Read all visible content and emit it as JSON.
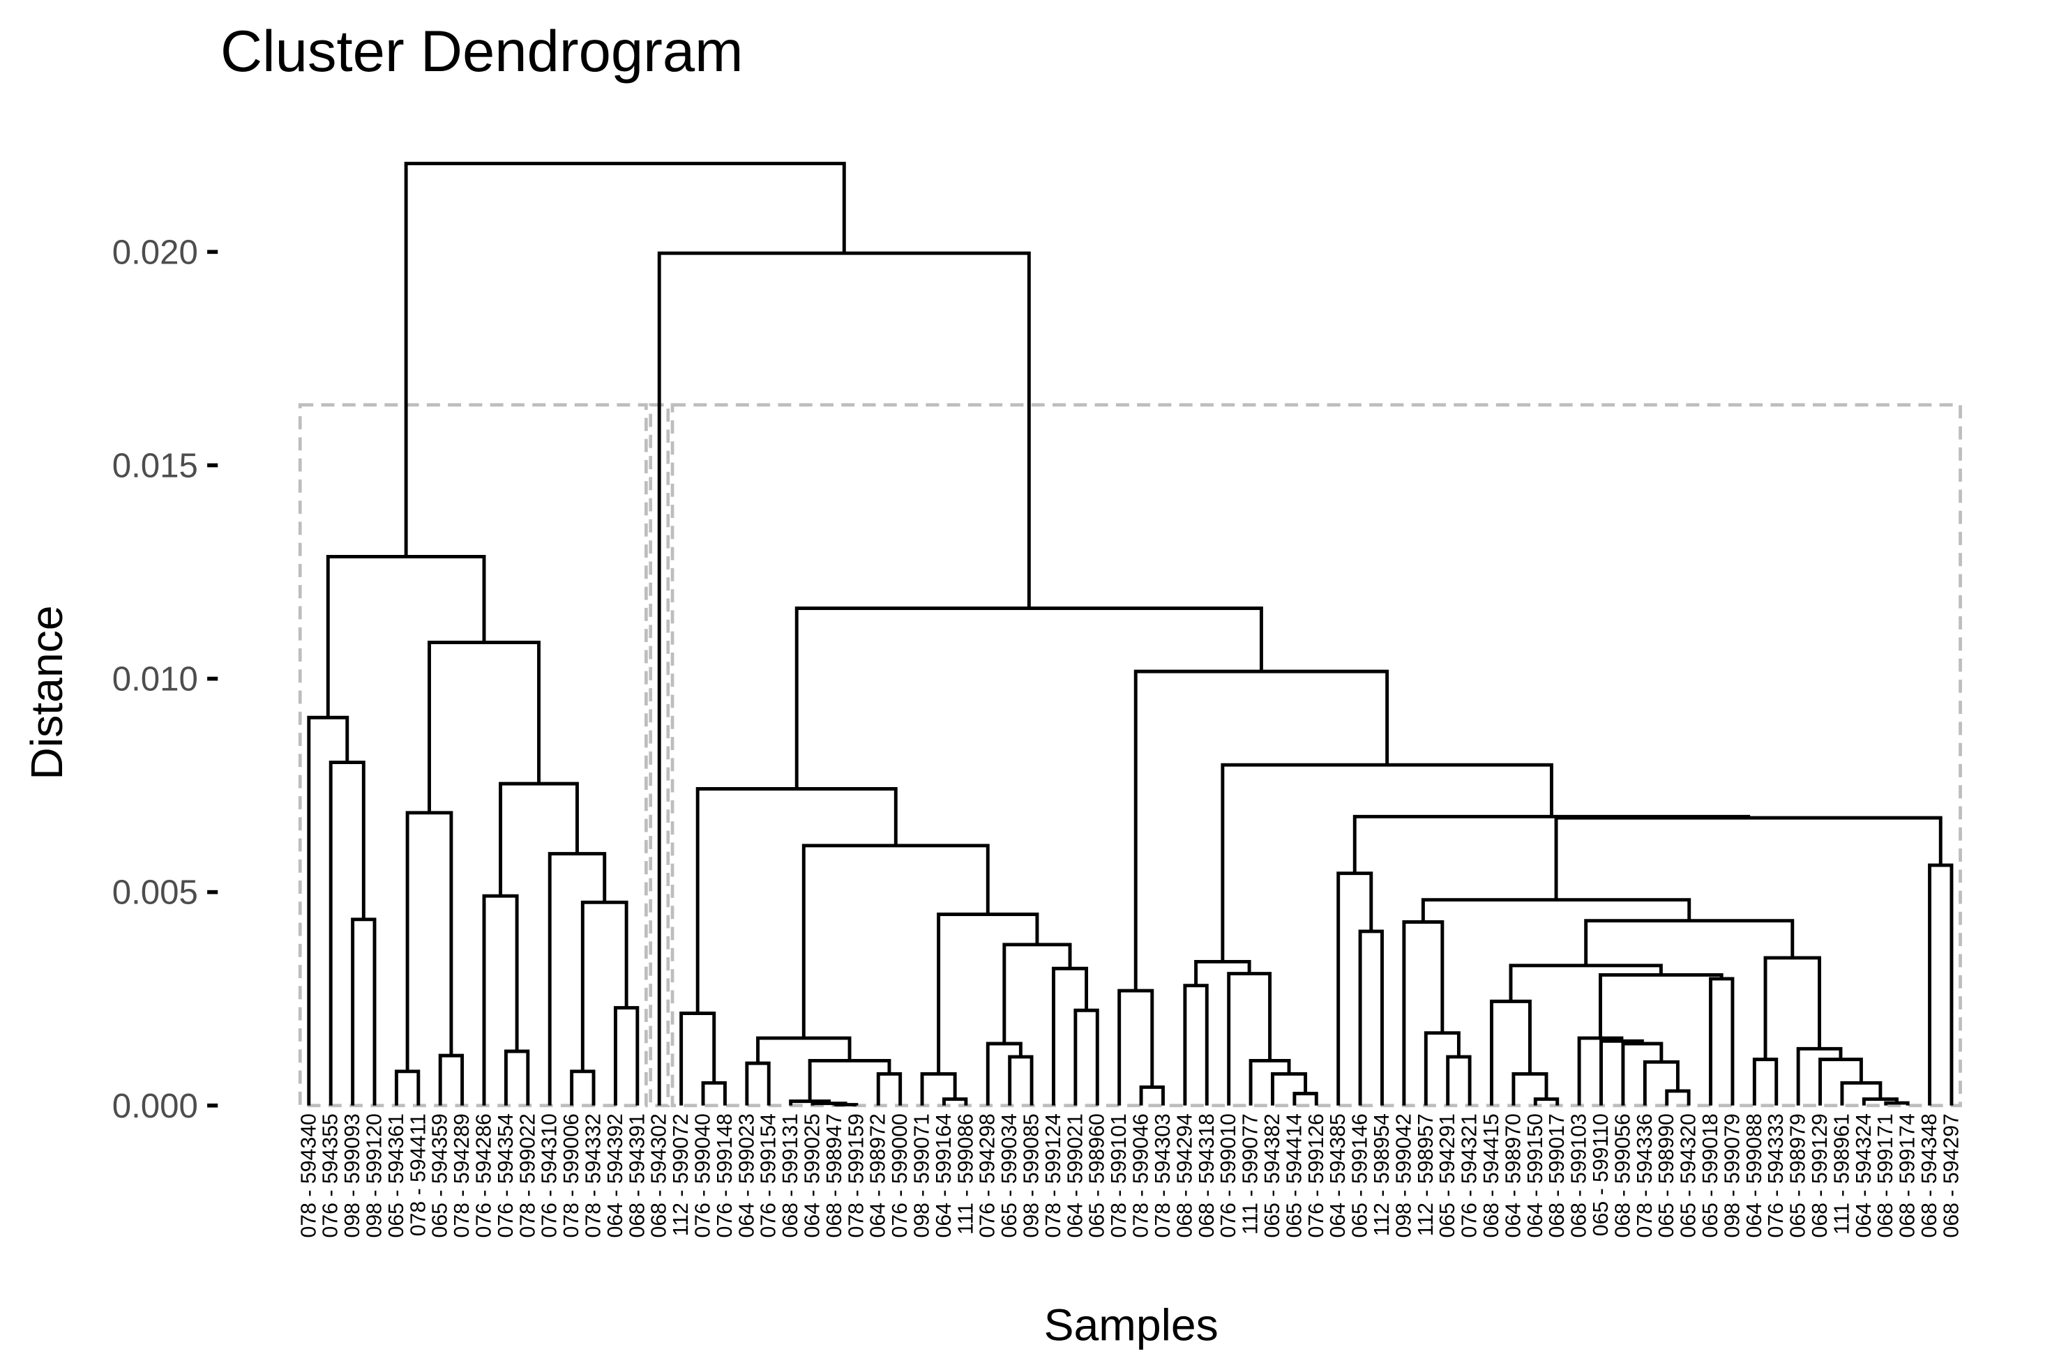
{
  "chart_data": {
    "type": "dendrogram",
    "title": "Cluster Dendrogram",
    "x_label": "Samples",
    "y_label": "Distance",
    "ylim": [
      0,
      0.0221
    ],
    "yticks": [
      {
        "value": 0,
        "label": "0.000"
      },
      0.005,
      {
        "value": 0.01,
        "label": "0.010"
      },
      0.015,
      {
        "value": 0.02,
        "label": "0.020"
      }
    ],
    "color": "#000000",
    "rect_k": 3,
    "rect_color": "#bdbdbd",
    "tree": {
      "height": 0.02207,
      "children": [
        {
          "height": 0.01286,
          "children": [
            {
              "height": 0.00909,
              "children": [
                "078 - 594340",
                {
                  "height": 0.00804,
                  "children": [
                    "076 - 594355",
                    {
                      "height": 0.00436,
                      "children": [
                        "098 - 599093",
                        "098 - 599120"
                      ]
                    }
                  ]
                }
              ]
            },
            {
              "height": 0.01085,
              "children": [
                {
                  "height": 0.00686,
                  "children": [
                    {
                      "height": 0.0008,
                      "children": [
                        "065 - 594361",
                        "078 - 594411"
                      ]
                    },
                    {
                      "height": 0.00117,
                      "children": [
                        "065 - 594359",
                        "078 - 594289"
                      ]
                    }
                  ]
                },
                {
                  "height": 0.00754,
                  "children": [
                    {
                      "height": 0.00491,
                      "children": [
                        "076 - 594286",
                        {
                          "height": 0.00127,
                          "children": [
                            "076 - 594354",
                            "078 - 599022"
                          ]
                        }
                      ]
                    },
                    {
                      "height": 0.0059,
                      "children": [
                        "076 - 594310",
                        {
                          "height": 0.00476,
                          "children": [
                            {
                              "height": 0.0008,
                              "children": [
                                "078 - 599006",
                                "078 - 594332"
                              ]
                            },
                            {
                              "height": 0.00229,
                              "children": [
                                "064 - 594392",
                                "068 - 594391"
                              ]
                            }
                          ]
                        }
                      ]
                    }
                  ]
                }
              ]
            }
          ]
        },
        {
          "height": 0.01997,
          "children": [
            "068 - 594302",
            {
              "height": 0.01165,
              "children": [
                {
                  "height": 0.00742,
                  "children": [
                    {
                      "height": 0.00216,
                      "children": [
                        "112 - 599072",
                        {
                          "height": 0.00053,
                          "children": [
                            "076 - 599040",
                            "076 - 599148"
                          ]
                        }
                      ]
                    },
                    {
                      "height": 0.00609,
                      "children": [
                        {
                          "height": 0.00158,
                          "children": [
                            {
                              "height": 0.00099,
                              "children": [
                                "064 - 599023",
                                "076 - 599154"
                              ]
                            },
                            {
                              "height": 0.00105,
                              "children": [
                                {
                                  "height": 0.0001,
                                  "children": [
                                    "068 - 599131",
                                    {
                                      "height": 5e-05,
                                      "children": [
                                        "064 - 599025",
                                        {
                                          "height": 2e-05,
                                          "children": [
                                            "068 - 598947",
                                            "078 - 599159"
                                          ]
                                        }
                                      ]
                                    }
                                  ]
                                },
                                {
                                  "height": 0.00074,
                                  "children": [
                                    "064 - 598972",
                                    "076 - 599000"
                                  ]
                                }
                              ]
                            }
                          ]
                        },
                        {
                          "height": 0.00448,
                          "children": [
                            {
                              "height": 0.00074,
                              "children": [
                                "098 - 599071",
                                {
                                  "height": 0.00015,
                                  "children": [
                                    "064 - 599164",
                                    "111 - 599086"
                                  ]
                                }
                              ]
                            },
                            {
                              "height": 0.00377,
                              "children": [
                                {
                                  "height": 0.00145,
                                  "children": [
                                    "076 - 594298",
                                    {
                                      "height": 0.00114,
                                      "children": [
                                        "065 - 599034",
                                        "098 - 599085"
                                      ]
                                    }
                                  ]
                                },
                                {
                                  "height": 0.00321,
                                  "children": [
                                    "078 - 599124",
                                    {
                                      "height": 0.00223,
                                      "children": [
                                        "064 - 599021",
                                        "065 - 598960"
                                      ]
                                    }
                                  ]
                                }
                              ]
                            }
                          ]
                        }
                      ]
                    }
                  ]
                },
                {
                  "height": 0.01017,
                  "children": [
                    {
                      "height": 0.00269,
                      "children": [
                        "078 - 599101",
                        {
                          "height": 0.00043,
                          "children": [
                            "078 - 599046",
                            "078 - 594303"
                          ]
                        }
                      ]
                    },
                    {
                      "height": 0.00798,
                      "children": [
                        {
                          "height": 0.00337,
                          "children": [
                            {
                              "height": 0.00281,
                              "children": [
                                "068 - 594294",
                                "068 - 594318"
                              ]
                            },
                            {
                              "height": 0.00309,
                              "children": [
                                "076 - 599010",
                                {
                                  "height": 0.00105,
                                  "children": [
                                    "111 - 599077",
                                    {
                                      "height": 0.00074,
                                      "children": [
                                        "065 - 594382",
                                        {
                                          "height": 0.00028,
                                          "children": [
                                            "065 - 594414",
                                            "076 - 599126"
                                          ]
                                        }
                                      ]
                                    }
                                  ]
                                }
                              ]
                            }
                          ]
                        },
                        {
                          "height": 0.00677,
                          "children": [
                            {
                              "height": 0.00544,
                              "children": [
                                "064 - 594385",
                                {
                                  "height": 0.00408,
                                  "children": [
                                    "065 - 599146",
                                    "112 - 598954"
                                  ]
                                }
                              ]
                            },
                            {
                              "height": 0.00674,
                              "children": [
                                {
                                  "height": 0.00482,
                                  "children": [
                                    {
                                      "height": 0.0043,
                                      "children": [
                                        "098 - 599042",
                                        {
                                          "height": 0.0017,
                                          "children": [
                                            "112 - 598957",
                                            {
                                              "height": 0.00114,
                                              "children": [
                                                "065 - 594291",
                                                "076 - 594321"
                                              ]
                                            }
                                          ]
                                        }
                                      ]
                                    },
                                    {
                                      "height": 0.00433,
                                      "children": [
                                        {
                                          "height": 0.00328,
                                          "children": [
                                            {
                                              "height": 0.00244,
                                              "children": [
                                                "068 - 594415",
                                                {
                                                  "height": 0.00074,
                                                  "children": [
                                                    "064 - 598970",
                                                    {
                                                      "height": 0.00015,
                                                      "children": [
                                                        "064 - 599150",
                                                        "068 - 599017"
                                                      ]
                                                    }
                                                  ]
                                                }
                                              ]
                                            },
                                            {
                                              "height": 0.00306,
                                              "children": [
                                                {
                                                  "height": 0.00158,
                                                  "children": [
                                                    "068 - 599103",
                                                    {
                                                      "height": 0.00151,
                                                      "children": [
                                                        "065 - 599110",
                                                        {
                                                          "height": 0.00145,
                                                          "children": [
                                                            "068 - 599056",
                                                            {
                                                              "height": 0.00102,
                                                              "children": [
                                                                "078 - 594336",
                                                                {
                                                                  "height": 0.00034,
                                                                  "children": [
                                                                    "065 - 598990",
                                                                    "065 - 594320"
                                                                  ]
                                                                }
                                                              ]
                                                            }
                                                          ]
                                                        }
                                                      ]
                                                    }
                                                  ]
                                                },
                                                {
                                                  "height": 0.00297,
                                                  "children": [
                                                    "065 - 599018",
                                                    "098 - 599079"
                                                  ]
                                                }
                                              ]
                                            }
                                          ]
                                        },
                                        {
                                          "height": 0.00346,
                                          "children": [
                                            {
                                              "height": 0.00108,
                                              "children": [
                                                "064 - 599088",
                                                "076 - 594333"
                                              ]
                                            },
                                            {
                                              "height": 0.00133,
                                              "children": [
                                                "065 - 598979",
                                                {
                                                  "height": 0.00108,
                                                  "children": [
                                                    "068 - 599129",
                                                    {
                                                      "height": 0.00053,
                                                      "children": [
                                                        "111 - 598961",
                                                        {
                                                          "height": 0.00015,
                                                          "children": [
                                                            "064 - 594324",
                                                            {
                                                              "height": 6e-05,
                                                              "children": [
                                                                "068 - 599171",
                                                                "068 - 599174"
                                                              ]
                                                            }
                                                          ]
                                                        }
                                                      ]
                                                    }
                                                  ]
                                                }
                                              ]
                                            }
                                          ]
                                        }
                                      ]
                                    }
                                  ]
                                },
                                {
                                  "height": 0.00563,
                                  "children": [
                                    "068 - 594348",
                                    "068 - 594297"
                                  ]
                                }
                              ]
                            }
                          ]
                        }
                      ]
                    }
                  ]
                }
              ]
            }
          ]
        }
      ]
    }
  }
}
